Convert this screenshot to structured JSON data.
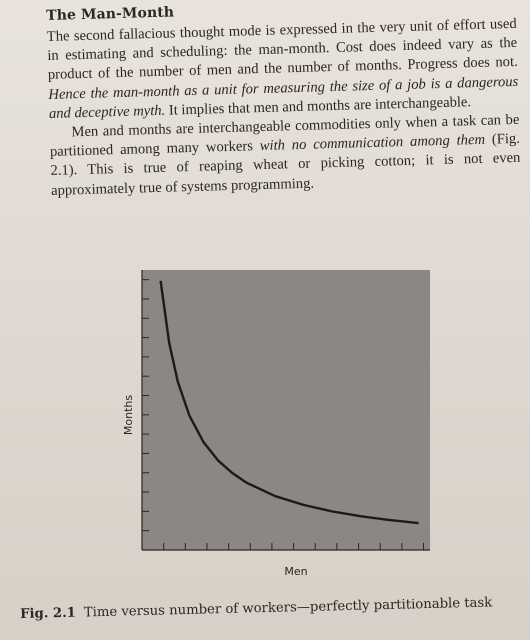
{
  "section": {
    "heading": "The Man-Month"
  },
  "paragraph1": {
    "s1": "The second fallacious thought mode is expressed in the very unit of effort used in estimating and scheduling: the man-month. Cost does indeed vary as the product of the number of men and the number of months. Progress does not. ",
    "s2": "Hence the man-month as a unit for measuring the size of a job is a dangerous and deceptive myth.",
    "s3": " It implies that men and months are interchangeable."
  },
  "paragraph2": {
    "s1": "Men and months are interchangeable commodities only when a task can be partitioned among many workers ",
    "s2": "with no communication among them",
    "s3": " (Fig. 2.1). This is true of reaping wheat or picking cotton; it is not even approximately true of systems programming."
  },
  "figure": {
    "label": "Fig. 2.1",
    "caption": "Time versus number of workers—perfectly partitionable task"
  },
  "chart_data": {
    "type": "line",
    "xlabel": "Men",
    "ylabel": "Months",
    "title": "",
    "x_ticks": 13,
    "y_ticks": 14,
    "series": [
      {
        "x": [
          1.0,
          1.3,
          1.6,
          2.0,
          2.5,
          3.0,
          3.5,
          4.0,
          5.0,
          6.0,
          7.0,
          8.0,
          9.0,
          10.0
        ],
        "y": [
          10.0,
          7.69,
          6.25,
          5.0,
          4.0,
          3.33,
          2.86,
          2.5,
          2.0,
          1.67,
          1.43,
          1.25,
          1.11,
          1.0
        ]
      }
    ],
    "xlim": [
      0.35,
      10.4
    ],
    "ylim": [
      0,
      10.4
    ],
    "colors": {
      "plot_background": "#8a8784",
      "curve": "#1f1a17",
      "axis": "#2b2622"
    }
  }
}
